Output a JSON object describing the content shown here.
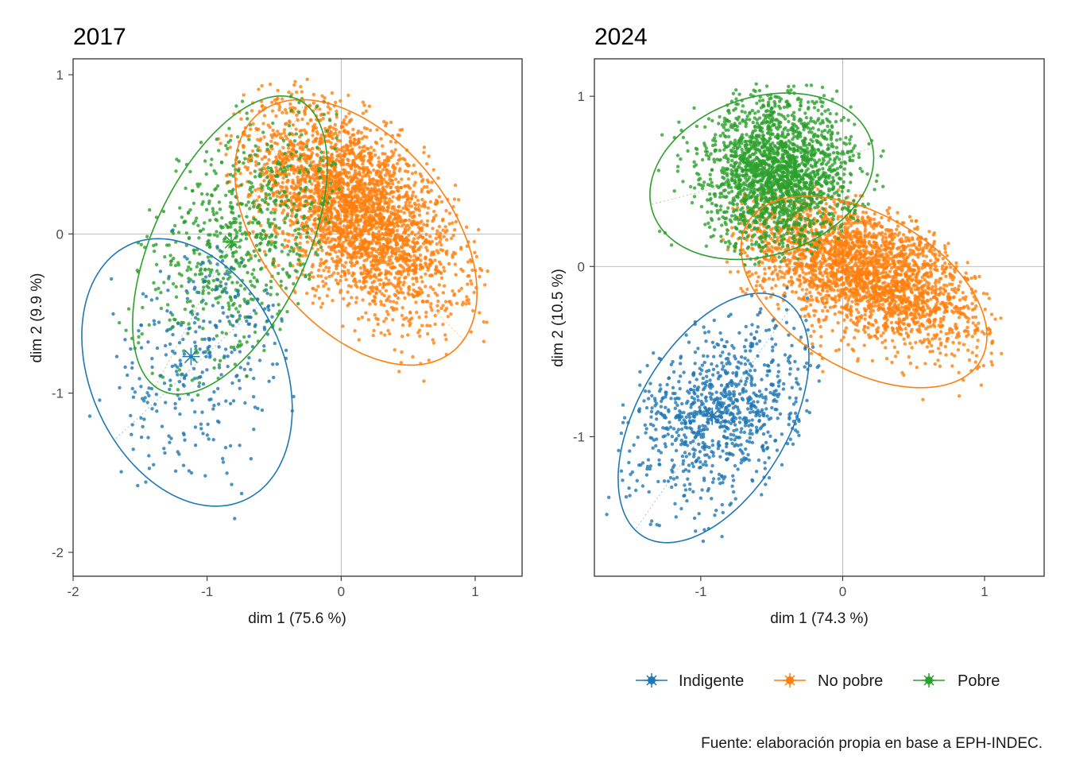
{
  "colors": {
    "Indigente": "#1f77b4",
    "No pobre": "#ff7f0e",
    "Pobre": "#2ca02c",
    "frame": "#333333",
    "zero_line": "#aaaaaa"
  },
  "caption": "Fuente: elaboración propia en base a EPH-INDEC.",
  "legend": {
    "position": "bottom",
    "items": [
      {
        "label": "Indigente",
        "group": "Indigente"
      },
      {
        "label": "No pobre",
        "group": "No pobre"
      },
      {
        "label": "Pobre",
        "group": "Pobre"
      }
    ]
  },
  "chart_data": [
    {
      "type": "scatter",
      "title": "2017",
      "xlabel": "dim 1 (75.6 %)",
      "ylabel": "dim 2 (9.9 %)",
      "xlim": [
        -2.0,
        1.35
      ],
      "ylim": [
        -2.15,
        1.1
      ],
      "xticks": [
        -2,
        -1,
        0,
        1
      ],
      "yticks": [
        -2,
        -1,
        0,
        1
      ],
      "xtick_labels": [
        "-2",
        "-1",
        "0",
        "1"
      ],
      "ytick_labels": [
        "-2",
        "-1",
        "0",
        "1"
      ],
      "reference_lines": {
        "x": 0,
        "y": 0
      },
      "groups": [
        {
          "name": "Indigente",
          "n_points": 300,
          "centroid": [
            -1.12,
            -0.77
          ],
          "ellipse": {
            "center": [
              -1.15,
              -0.87
            ],
            "rx": 0.69,
            "ry": 0.92,
            "angle_deg": 38
          },
          "cloud": {
            "mean": [
              -1.02,
              -0.8
            ],
            "sd": [
              0.38,
              0.4
            ],
            "corr": 0.35
          }
        },
        {
          "name": "No pobre",
          "n_points": 3000,
          "centroid": [
            0.08,
            0.18
          ],
          "ellipse": {
            "center": [
              0.11,
              0.01
            ],
            "rx": 1.05,
            "ry": 0.64,
            "angle_deg": -40
          },
          "cloud": {
            "mean": [
              0.1,
              0.15
            ],
            "sd": [
              0.38,
              0.33
            ],
            "corr": -0.55
          }
        },
        {
          "name": "Pobre",
          "n_points": 700,
          "centroid": [
            -0.82,
            -0.05
          ],
          "ellipse": {
            "center": [
              -0.83,
              -0.07
            ],
            "rx": 1.05,
            "ry": 0.55,
            "angle_deg": 58
          },
          "cloud": {
            "mean": [
              -0.72,
              -0.05
            ],
            "sd": [
              0.38,
              0.4
            ],
            "corr": 0.4
          }
        }
      ]
    },
    {
      "type": "scatter",
      "title": "2024",
      "xlabel": "dim 1 (74.3 %)",
      "ylabel": "dim 2 (10.5 %)",
      "xlim": [
        -1.75,
        1.42
      ],
      "ylim": [
        -1.82,
        1.22
      ],
      "xticks": [
        -1,
        0,
        1
      ],
      "yticks": [
        -1,
        0,
        1
      ],
      "xtick_labels": [
        "-1",
        "0",
        "1"
      ],
      "ytick_labels": [
        "-1",
        "0",
        "1"
      ],
      "reference_lines": {
        "x": 0,
        "y": 0
      },
      "groups": [
        {
          "name": "Indigente",
          "n_points": 900,
          "centroid": [
            -0.92,
            -0.88
          ],
          "ellipse": {
            "center": [
              -0.91,
              -0.89
            ],
            "rx": 0.86,
            "ry": 0.5,
            "angle_deg": 50
          },
          "cloud": {
            "mean": [
              -0.85,
              -0.85
            ],
            "sd": [
              0.32,
              0.25
            ],
            "corr": 0.3
          }
        },
        {
          "name": "No pobre",
          "n_points": 2600,
          "centroid": [
            0.1,
            -0.05
          ],
          "ellipse": {
            "center": [
              0.15,
              -0.15
            ],
            "rx": 0.92,
            "ry": 0.47,
            "angle_deg": -23
          },
          "cloud": {
            "mean": [
              0.15,
              -0.02
            ],
            "sd": [
              0.42,
              0.22
            ],
            "corr": -0.5
          }
        },
        {
          "name": "Pobre",
          "n_points": 2000,
          "centroid": [
            -0.52,
            0.55
          ],
          "ellipse": {
            "center": [
              -0.57,
              0.53
            ],
            "rx": 0.8,
            "ry": 0.47,
            "angle_deg": 12
          },
          "cloud": {
            "mean": [
              -0.45,
              0.55
            ],
            "sd": [
              0.26,
              0.22
            ],
            "corr": 0.0
          }
        }
      ]
    }
  ]
}
